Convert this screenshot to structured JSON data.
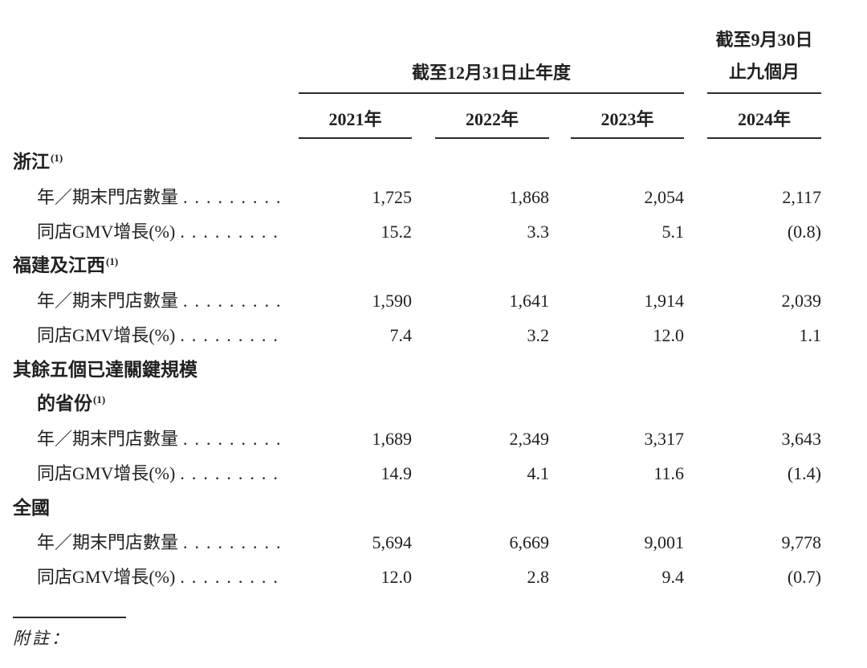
{
  "page": {
    "background": "#ffffff",
    "text_color": "#212121",
    "rule_color": "#2b2b2b"
  },
  "header": {
    "fiscal_year_group": "截至12月31日止年度",
    "nine_month_group_line1": "截至9月30日",
    "nine_month_group_line2": "止九個月",
    "year_columns": [
      "2021年",
      "2022年",
      "2023年",
      "2024年"
    ]
  },
  "labels": {
    "stores_row": "年／期末門店數量",
    "gmv_row": "同店GMV增長(%)",
    "dot_leader": ".........",
    "footnote": "附註："
  },
  "sections": [
    {
      "title": "浙江",
      "sup": "(1)",
      "stores": [
        "1,725",
        "1,868",
        "2,054",
        "2,117"
      ],
      "gmv": [
        "15.2",
        "3.3",
        "5.1",
        "(0.8)"
      ]
    },
    {
      "title": "福建及江西",
      "sup": "(1)",
      "stores": [
        "1,590",
        "1,641",
        "1,914",
        "2,039"
      ],
      "gmv": [
        "7.4",
        "3.2",
        "12.0",
        "1.1"
      ]
    },
    {
      "title": "其餘五個已達關鍵規模",
      "title2": "的省份",
      "sup": "(1)",
      "stores": [
        "1,689",
        "2,349",
        "3,317",
        "3,643"
      ],
      "gmv": [
        "14.9",
        "4.1",
        "11.6",
        "(1.4)"
      ]
    },
    {
      "title": "全國",
      "stores": [
        "5,694",
        "6,669",
        "9,001",
        "9,778"
      ],
      "gmv": [
        "12.0",
        "2.8",
        "9.4",
        "(0.7)"
      ]
    }
  ]
}
